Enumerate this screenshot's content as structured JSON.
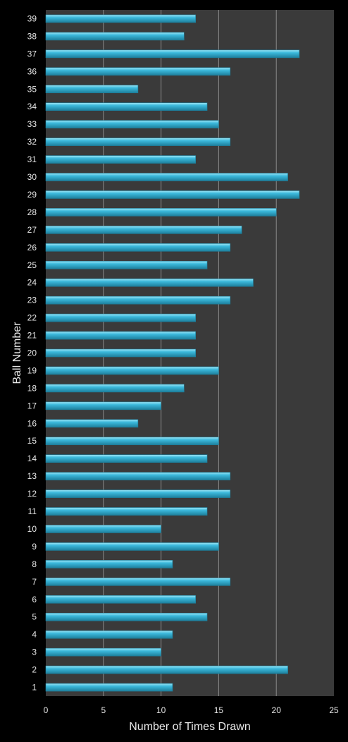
{
  "chart_data": {
    "type": "bar",
    "orientation": "horizontal",
    "title": "",
    "xlabel": "Number of Times Drawn",
    "ylabel": "Ball Number",
    "xlim": [
      0,
      25
    ],
    "x_ticks": [
      0,
      5,
      10,
      15,
      20,
      25
    ],
    "grid": true,
    "legend": "none",
    "categories": [
      "1",
      "2",
      "3",
      "4",
      "5",
      "6",
      "7",
      "8",
      "9",
      "10",
      "11",
      "12",
      "13",
      "14",
      "15",
      "16",
      "17",
      "18",
      "19",
      "20",
      "21",
      "22",
      "23",
      "24",
      "25",
      "26",
      "27",
      "28",
      "29",
      "30",
      "31",
      "32",
      "33",
      "34",
      "35",
      "36",
      "37",
      "38",
      "39"
    ],
    "values": [
      11,
      21,
      10,
      11,
      14,
      13,
      16,
      11,
      15,
      10,
      14,
      16,
      16,
      14,
      15,
      8,
      10,
      12,
      15,
      13,
      13,
      13,
      16,
      18,
      14,
      16,
      17,
      20,
      22,
      21,
      13,
      16,
      15,
      14,
      8,
      16,
      22,
      12,
      13
    ],
    "colors": {
      "background": "#000000",
      "plot_background": "#3a3a3a",
      "bar": "#3cb9dc",
      "bar_highlight": "#9ee6f6",
      "bar_shadow": "#1d7f9c",
      "gridline": "#8a8a8a",
      "text": "#e8e8e8"
    }
  }
}
